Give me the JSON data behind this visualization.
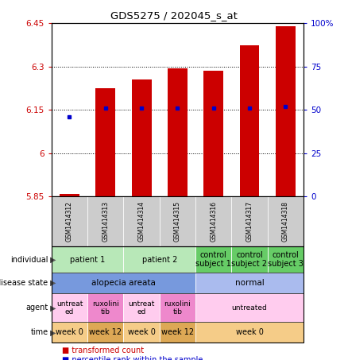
{
  "title": "GDS5275 / 202045_s_at",
  "samples": [
    "GSM1414312",
    "GSM1414313",
    "GSM1414314",
    "GSM1414315",
    "GSM1414316",
    "GSM1414317",
    "GSM1414318"
  ],
  "transformed_count": [
    5.858,
    6.225,
    6.255,
    6.295,
    6.285,
    6.375,
    6.44
  ],
  "percentile_rank": [
    46,
    51,
    51,
    51,
    51,
    51,
    52
  ],
  "ylim_left": [
    5.85,
    6.45
  ],
  "ylim_right": [
    0,
    100
  ],
  "yticks_left": [
    5.85,
    6.0,
    6.15,
    6.3,
    6.45
  ],
  "ytick_labels_left": [
    "5.85",
    "6",
    "6.15",
    "6.3",
    "6.45"
  ],
  "yticks_right": [
    0,
    25,
    50,
    75,
    100
  ],
  "ytick_labels_right": [
    "0",
    "25",
    "50",
    "75",
    "100%"
  ],
  "bar_color": "#cc0000",
  "dot_color": "#0000cc",
  "background_color": "#ffffff",
  "individual_data": [
    {
      "label": "patient 1",
      "span": [
        0,
        1
      ],
      "color": "#b8e8b8"
    },
    {
      "label": "patient 2",
      "span": [
        2,
        3
      ],
      "color": "#b8e8b8"
    },
    {
      "label": "control\nsubject 1",
      "span": [
        4,
        4
      ],
      "color": "#66cc66"
    },
    {
      "label": "control\nsubject 2",
      "span": [
        5,
        5
      ],
      "color": "#66cc66"
    },
    {
      "label": "control\nsubject 3",
      "span": [
        6,
        6
      ],
      "color": "#66cc66"
    }
  ],
  "disease_data": [
    {
      "label": "alopecia areata",
      "span": [
        0,
        3
      ],
      "color": "#7799dd"
    },
    {
      "label": "normal",
      "span": [
        4,
        6
      ],
      "color": "#aabbee"
    }
  ],
  "agent_data": [
    {
      "label": "untreat\ned",
      "span": [
        0,
        0
      ],
      "color": "#ffccee"
    },
    {
      "label": "ruxolini\ntib",
      "span": [
        1,
        1
      ],
      "color": "#ee88cc"
    },
    {
      "label": "untreat\ned",
      "span": [
        2,
        2
      ],
      "color": "#ffccee"
    },
    {
      "label": "ruxolini\ntib",
      "span": [
        3,
        3
      ],
      "color": "#ee88cc"
    },
    {
      "label": "untreated",
      "span": [
        4,
        6
      ],
      "color": "#ffccee"
    }
  ],
  "time_data": [
    {
      "label": "week 0",
      "span": [
        0,
        0
      ],
      "color": "#f5cc88"
    },
    {
      "label": "week 12",
      "span": [
        1,
        1
      ],
      "color": "#dda855"
    },
    {
      "label": "week 0",
      "span": [
        2,
        2
      ],
      "color": "#f5cc88"
    },
    {
      "label": "week 12",
      "span": [
        3,
        3
      ],
      "color": "#dda855"
    },
    {
      "label": "week 0",
      "span": [
        4,
        6
      ],
      "color": "#f5cc88"
    }
  ],
  "row_labels": [
    "individual",
    "disease state",
    "agent",
    "time"
  ],
  "legend_items": [
    {
      "color": "#cc0000",
      "label": "transformed count"
    },
    {
      "color": "#0000cc",
      "label": "percentile rank within the sample"
    }
  ]
}
